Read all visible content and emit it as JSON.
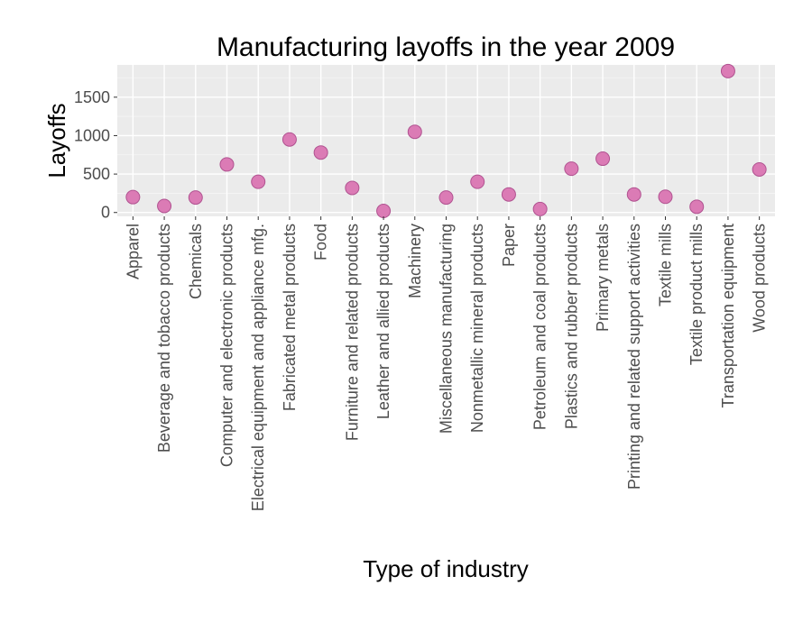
{
  "chart_data": {
    "type": "scatter",
    "title": "Manufacturing layoffs in the year 2009",
    "xlabel": "Type of industry",
    "ylabel": "Layoffs",
    "categories": [
      "Apparel",
      "Beverage and tobacco products",
      "Chemicals",
      "Computer and electronic products",
      "Electrical equipment and appliance mfg.",
      "Fabricated metal products",
      "Food",
      "Furniture and related products",
      "Leather and allied products",
      "Machinery",
      "Miscellaneous manufacturing",
      "Nonmetallic mineral products",
      "Paper",
      "Petroleum and coal products",
      "Plastics and rubber products",
      "Primary metals",
      "Printing and related support activities",
      "Textile mills",
      "Textile product mills",
      "Transportation equipment",
      "Wood products"
    ],
    "values": [
      200,
      85,
      195,
      625,
      400,
      950,
      780,
      320,
      20,
      1050,
      195,
      400,
      235,
      45,
      570,
      700,
      235,
      205,
      75,
      1840,
      560
    ],
    "ylim": [
      -50,
      1920
    ],
    "yticks": [
      0,
      500,
      1000,
      1500
    ],
    "grid": true,
    "point_color": "#db7bb5",
    "point_stroke": "#b05290",
    "panel_background": "#ebebeb"
  }
}
